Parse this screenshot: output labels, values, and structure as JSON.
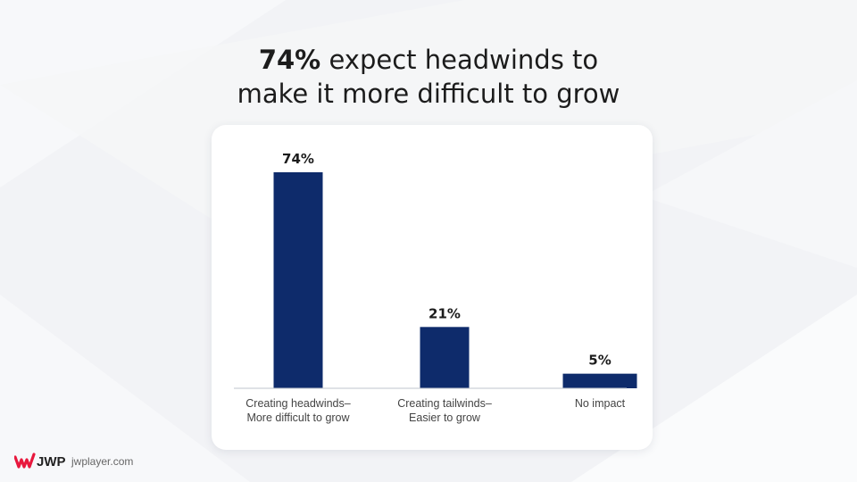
{
  "title": {
    "highlight": "74%",
    "line1_rest": " expect headwinds to",
    "line2": "make it more difficult to grow"
  },
  "chart_data": {
    "type": "bar",
    "categories": [
      [
        "Creating headwinds–",
        "More difficult to grow"
      ],
      [
        "Creating tailwinds–",
        "Easier to grow"
      ],
      [
        "No impact"
      ]
    ],
    "values": [
      74,
      21,
      5
    ],
    "value_labels": [
      "74%",
      "21%",
      "5%"
    ],
    "unit": "%",
    "ylim": [
      0,
      74
    ],
    "grid": false,
    "legend": "none",
    "bar_color": "#0e2b6b"
  },
  "brand": {
    "logo_text": "JWP",
    "site": "jwplayer.com",
    "logo_color": "#e8183d"
  },
  "colors": {
    "background": "#f2f3f6",
    "card": "#ffffff",
    "axis": "#bfc4cc"
  }
}
